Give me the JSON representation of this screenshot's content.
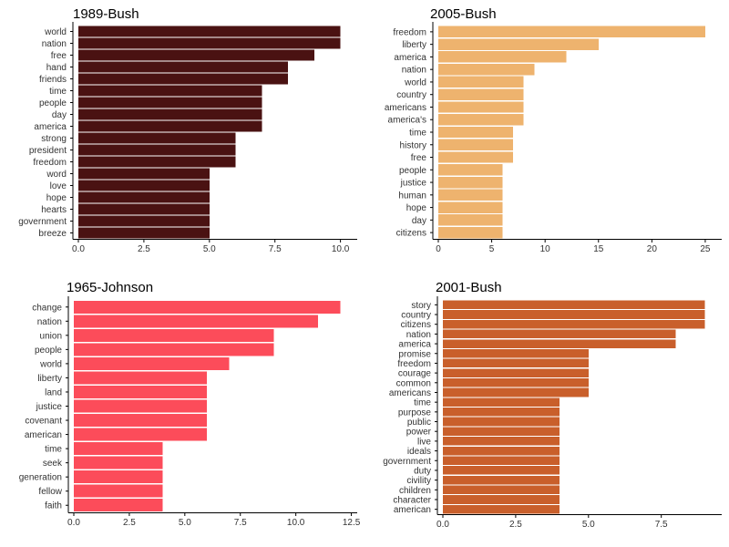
{
  "chart_data": [
    {
      "type": "bar",
      "orientation": "horizontal",
      "title": "1989-Bush",
      "color": "#4a1212",
      "xlim": [
        0,
        10.5
      ],
      "xticks": [
        0,
        2.5,
        5,
        7.5,
        10
      ],
      "xtick_labels": [
        "0.0",
        "2.5",
        "5.0",
        "7.5",
        "10.0"
      ],
      "categories": [
        "world",
        "nation",
        "free",
        "hand",
        "friends",
        "time",
        "people",
        "day",
        "america",
        "strong",
        "president",
        "freedom",
        "word",
        "love",
        "hope",
        "hearts",
        "government",
        "breeze"
      ],
      "values": [
        10,
        10,
        9,
        8,
        8,
        7,
        7,
        7,
        7,
        6,
        6,
        6,
        5,
        5,
        5,
        5,
        5,
        5
      ]
    },
    {
      "type": "bar",
      "orientation": "horizontal",
      "title": "2005-Bush",
      "color": "#eeb36e",
      "xlim": [
        0,
        26.2
      ],
      "xticks": [
        0,
        5,
        10,
        15,
        20,
        25
      ],
      "xtick_labels": [
        "0",
        "5",
        "10",
        "15",
        "20",
        "25"
      ],
      "categories": [
        "freedom",
        "liberty",
        "america",
        "nation",
        "world",
        "country",
        "americans",
        "america's",
        "time",
        "history",
        "free",
        "people",
        "justice",
        "human",
        "hope",
        "day",
        "citizens"
      ],
      "values": [
        25,
        15,
        12,
        9,
        8,
        8,
        8,
        8,
        7,
        7,
        7,
        6,
        6,
        6,
        6,
        6,
        6
      ]
    },
    {
      "type": "bar",
      "orientation": "horizontal",
      "title": "1965-Johnson",
      "color": "#fc4c5a",
      "xlim": [
        0,
        12.6
      ],
      "xticks": [
        0,
        2.5,
        5,
        7.5,
        10,
        12.5
      ],
      "xtick_labels": [
        "0.0",
        "2.5",
        "5.0",
        "7.5",
        "10.0",
        "12.5"
      ],
      "categories": [
        "change",
        "nation",
        "union",
        "people",
        "world",
        "liberty",
        "land",
        "justice",
        "covenant",
        "american",
        "time",
        "seek",
        "generation",
        "fellow",
        "faith"
      ],
      "values": [
        12,
        11,
        9,
        9,
        7,
        6,
        6,
        6,
        6,
        6,
        4,
        4,
        4,
        4,
        4
      ]
    },
    {
      "type": "bar",
      "orientation": "horizontal",
      "title": "2001-Bush",
      "color": "#c95f2b",
      "xlim": [
        0,
        9.45
      ],
      "xticks": [
        0,
        2.5,
        5,
        7.5
      ],
      "xtick_labels": [
        "0.0",
        "2.5",
        "5.0",
        "7.5"
      ],
      "categories": [
        "story",
        "country",
        "citizens",
        "nation",
        "america",
        "promise",
        "freedom",
        "courage",
        "common",
        "americans",
        "time",
        "purpose",
        "public",
        "power",
        "live",
        "ideals",
        "government",
        "duty",
        "civility",
        "children",
        "character",
        "american"
      ],
      "values": [
        9,
        9,
        9,
        8,
        8,
        5,
        5,
        5,
        5,
        5,
        4,
        4,
        4,
        4,
        4,
        4,
        4,
        4,
        4,
        4,
        4,
        4
      ]
    }
  ]
}
